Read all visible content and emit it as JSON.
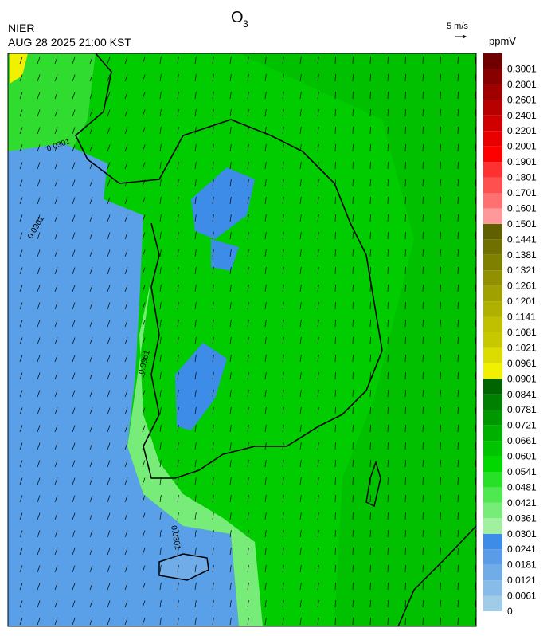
{
  "header": {
    "title": {
      "text": "O",
      "subscript": "3"
    },
    "agency": "NIER",
    "timestamp": "AUG 28 2025 21:00 KST",
    "wind_scale": "5 m/s"
  },
  "colorbar": {
    "unit": "ppmV",
    "levels": [
      0,
      0.0061,
      0.0121,
      0.0181,
      0.0241,
      0.0301,
      0.0361,
      0.0421,
      0.0481,
      0.0541,
      0.0601,
      0.0661,
      0.0721,
      0.0781,
      0.0841,
      0.0901,
      0.0961,
      0.1021,
      0.1081,
      0.1141,
      0.1201,
      0.1261,
      0.1321,
      0.1381,
      0.1441,
      0.1501,
      0.1601,
      0.1701,
      0.1801,
      0.1901,
      0.2001,
      0.2201,
      0.2401,
      0.2601,
      0.2801,
      0.3001
    ],
    "colors": [
      "#a0cce8",
      "#88bce8",
      "#70ace8",
      "#5a9ce8",
      "#3c8ce8",
      "#a0f0a0",
      "#78ec78",
      "#50e850",
      "#28e028",
      "#00d800",
      "#00c400",
      "#00b000",
      "#009800",
      "#008000",
      "#006400",
      "#f0f000",
      "#dcdc00",
      "#c8c800",
      "#c0c000",
      "#b0b000",
      "#a0a000",
      "#909000",
      "#808000",
      "#707000",
      "#606000",
      "#ff9999",
      "#ff7070",
      "#ff5050",
      "#ff3030",
      "#ff0000",
      "#e80000",
      "#d00000",
      "#b80000",
      "#a00000",
      "#880000",
      "#700000"
    ]
  },
  "contour_labels": [
    "0.0301",
    "0.0301",
    "0.0301",
    "0.0301"
  ]
}
